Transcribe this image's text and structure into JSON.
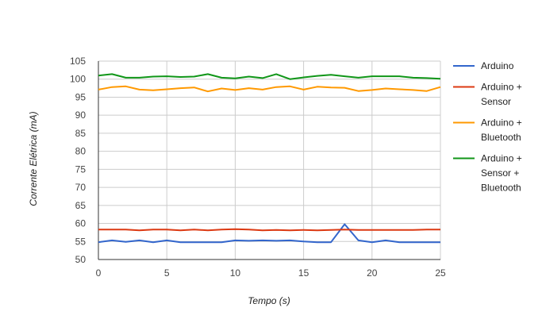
{
  "chart_data": {
    "type": "line",
    "title": "",
    "xlabel": "Tempo (s)",
    "ylabel": "Corrente Elétrica (mA)",
    "xlim": [
      0,
      25
    ],
    "ylim": [
      50,
      105
    ],
    "xticks": [
      0,
      5,
      10,
      15,
      20,
      25
    ],
    "yticks": [
      50,
      55,
      60,
      65,
      70,
      75,
      80,
      85,
      90,
      95,
      100,
      105
    ],
    "grid": true,
    "legend": "right",
    "x": [
      0,
      1,
      2,
      3,
      4,
      5,
      6,
      7,
      8,
      9,
      10,
      11,
      12,
      13,
      14,
      15,
      16,
      17,
      18,
      19,
      20,
      21,
      22,
      23,
      24,
      25
    ],
    "series": [
      {
        "name": "Arduino",
        "legend_lines": [
          "Arduino"
        ],
        "color": "#3366cc",
        "values": [
          54.8,
          55.3,
          54.9,
          55.3,
          54.8,
          55.3,
          54.8,
          54.8,
          54.8,
          54.8,
          55.3,
          55.2,
          55.3,
          55.2,
          55.3,
          55.0,
          54.8,
          54.8,
          59.8,
          55.3,
          54.8,
          55.3,
          54.8,
          54.8,
          54.8,
          54.8
        ]
      },
      {
        "name": "Arduino + Sensor",
        "legend_lines": [
          "Arduino +",
          "Sensor"
        ],
        "color": "#dc3912",
        "values": [
          58.3,
          58.3,
          58.3,
          58.1,
          58.3,
          58.3,
          58.1,
          58.3,
          58.1,
          58.3,
          58.4,
          58.3,
          58.1,
          58.2,
          58.1,
          58.2,
          58.1,
          58.2,
          58.3,
          58.2,
          58.2,
          58.2,
          58.2,
          58.2,
          58.3,
          58.3
        ]
      },
      {
        "name": "Arduino + Bluetooth",
        "legend_lines": [
          "Arduino +",
          "Bluetooth"
        ],
        "color": "#ff9900",
        "values": [
          97.1,
          97.8,
          98.0,
          97.1,
          96.9,
          97.2,
          97.5,
          97.7,
          96.6,
          97.4,
          97.0,
          97.5,
          97.1,
          97.8,
          98.0,
          97.1,
          97.9,
          97.7,
          97.6,
          96.7,
          97.0,
          97.4,
          97.2,
          97.0,
          96.7,
          97.8
        ]
      },
      {
        "name": "Arduino + Sensor + Bluetooth",
        "legend_lines": [
          "Arduino +",
          "Sensor +",
          "Bluetooth"
        ],
        "color": "#109618",
        "values": [
          101.0,
          101.4,
          100.4,
          100.4,
          100.7,
          100.8,
          100.6,
          100.7,
          101.4,
          100.4,
          100.2,
          100.7,
          100.3,
          101.4,
          100.0,
          100.5,
          100.9,
          101.2,
          100.8,
          100.4,
          100.8,
          100.8,
          100.8,
          100.4,
          100.3,
          100.1
        ]
      }
    ]
  }
}
